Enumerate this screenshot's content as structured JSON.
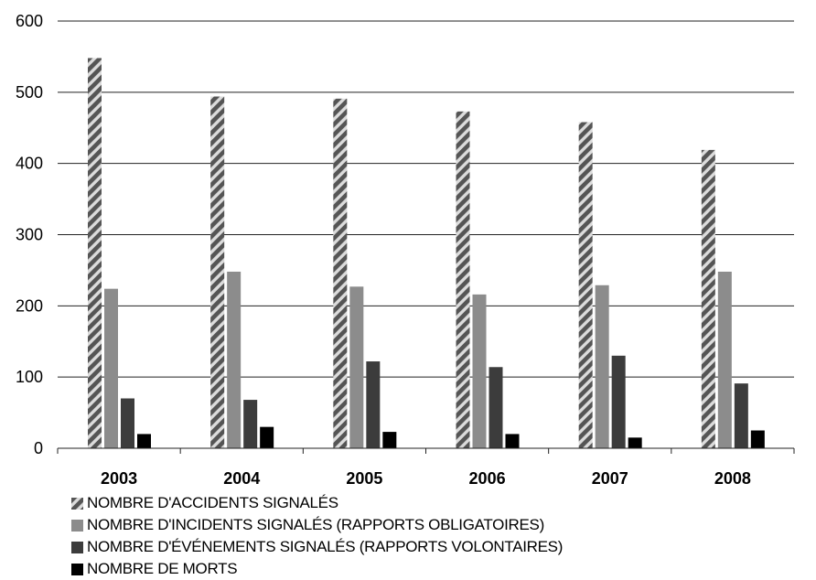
{
  "chart_data": {
    "type": "bar",
    "title": "",
    "xlabel": "",
    "ylabel": "",
    "categories": [
      "2003",
      "2004",
      "2005",
      "2006",
      "2007",
      "2008"
    ],
    "ylim": [
      0,
      600
    ],
    "yticks": [
      "0",
      "100",
      "200",
      "300",
      "400",
      "500",
      "600"
    ],
    "grid": true,
    "legend_position": "bottom-left",
    "series": [
      {
        "name": "NOMBRE D'ACCIDENTS SIGNALÉS",
        "values": [
          548,
          494,
          491,
          473,
          458,
          419
        ],
        "color": "#6a6a6a",
        "pattern": "diagonal-stripes"
      },
      {
        "name": "NOMBRE D'INCIDENTS SIGNALÉS (RAPPORTS OBLIGATOIRES)",
        "values": [
          224,
          248,
          227,
          216,
          229,
          248
        ],
        "color": "#8c8c8c",
        "pattern": "solid"
      },
      {
        "name": "NOMBRE D'ÉVÉNEMENTS SIGNALÉS (RAPPORTS VOLONTAIRES)",
        "values": [
          70,
          68,
          122,
          114,
          130,
          91
        ],
        "color": "#3c3c3c",
        "pattern": "solid"
      },
      {
        "name": "NOMBRE DE MORTS",
        "values": [
          20,
          30,
          23,
          20,
          15,
          25
        ],
        "color": "#000000",
        "pattern": "solid"
      }
    ]
  }
}
